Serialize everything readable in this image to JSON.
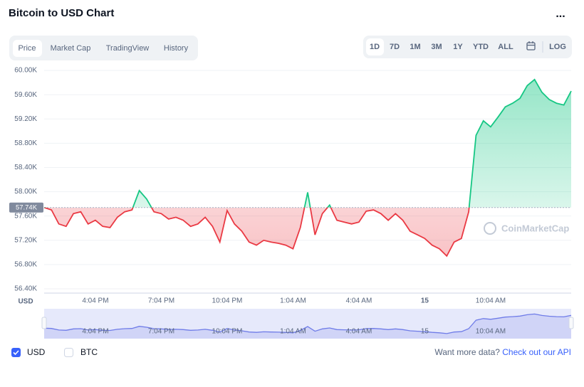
{
  "header": {
    "title": "Bitcoin to USD Chart",
    "menu": "..."
  },
  "tabs": [
    "Price",
    "Market Cap",
    "TradingView",
    "History"
  ],
  "ranges": [
    "1D",
    "7D",
    "1M",
    "3M",
    "1Y",
    "YTD",
    "ALL"
  ],
  "scale_toggle": "LOG",
  "footer": {
    "prompt": "Want more data?",
    "link": "Check out our API"
  },
  "chart_data": {
    "type": "line",
    "y_label": "USD",
    "watermark": "CoinMarketCap",
    "other_currency": "BTC",
    "categories": [
      null,
      null,
      null,
      null,
      null,
      null,
      null,
      "4:04 PM",
      null,
      null,
      null,
      null,
      null,
      null,
      null,
      null,
      "7:04 PM",
      null,
      null,
      null,
      null,
      null,
      null,
      null,
      null,
      "10:04 PM",
      null,
      null,
      null,
      null,
      null,
      null,
      null,
      null,
      "1:04 AM",
      null,
      null,
      null,
      null,
      null,
      null,
      null,
      null,
      "4:04 AM",
      null,
      null,
      null,
      null,
      null,
      null,
      null,
      null,
      "15",
      null,
      null,
      null,
      null,
      null,
      null,
      null,
      null,
      "10:04 AM",
      null,
      null,
      null,
      null,
      null,
      null,
      null,
      null,
      null,
      null,
      null
    ],
    "series": [
      {
        "name": "USD",
        "up_color": "#16c784",
        "down_color": "#ea3943",
        "values": [
          57740,
          57700,
          57470,
          57430,
          57640,
          57670,
          57470,
          57530,
          57430,
          57410,
          57580,
          57670,
          57700,
          58020,
          57880,
          57670,
          57640,
          57550,
          57580,
          57530,
          57430,
          57470,
          57580,
          57430,
          57170,
          57690,
          57470,
          57350,
          57170,
          57120,
          57200,
          57170,
          57150,
          57120,
          57060,
          57410,
          57990,
          57290,
          57640,
          57780,
          57530,
          57500,
          57470,
          57500,
          57680,
          57700,
          57640,
          57530,
          57640,
          57530,
          57350,
          57290,
          57230,
          57120,
          57060,
          56940,
          57170,
          57230,
          57670,
          58930,
          59170,
          59070,
          59230,
          59400,
          59460,
          59540,
          59750,
          59850,
          59640,
          59520,
          59460,
          59430,
          59660
        ]
      }
    ],
    "baseline": {
      "value": 57740,
      "label": "57.74K"
    },
    "ylim": [
      56400,
      60000
    ],
    "yticks": [
      {
        "value": 56400,
        "label": "56.40K"
      },
      {
        "value": 56800,
        "label": "56.80K"
      },
      {
        "value": 57200,
        "label": "57.20K"
      },
      {
        "value": 57600,
        "label": "57.60K"
      },
      {
        "value": 58000,
        "label": "58.00K"
      },
      {
        "value": 58400,
        "label": "58.40K"
      },
      {
        "value": 58800,
        "label": "58.80K"
      },
      {
        "value": 59200,
        "label": "59.20K"
      },
      {
        "value": 59600,
        "label": "59.60K"
      },
      {
        "value": 60000,
        "label": "60.00K"
      }
    ],
    "grid": true
  }
}
